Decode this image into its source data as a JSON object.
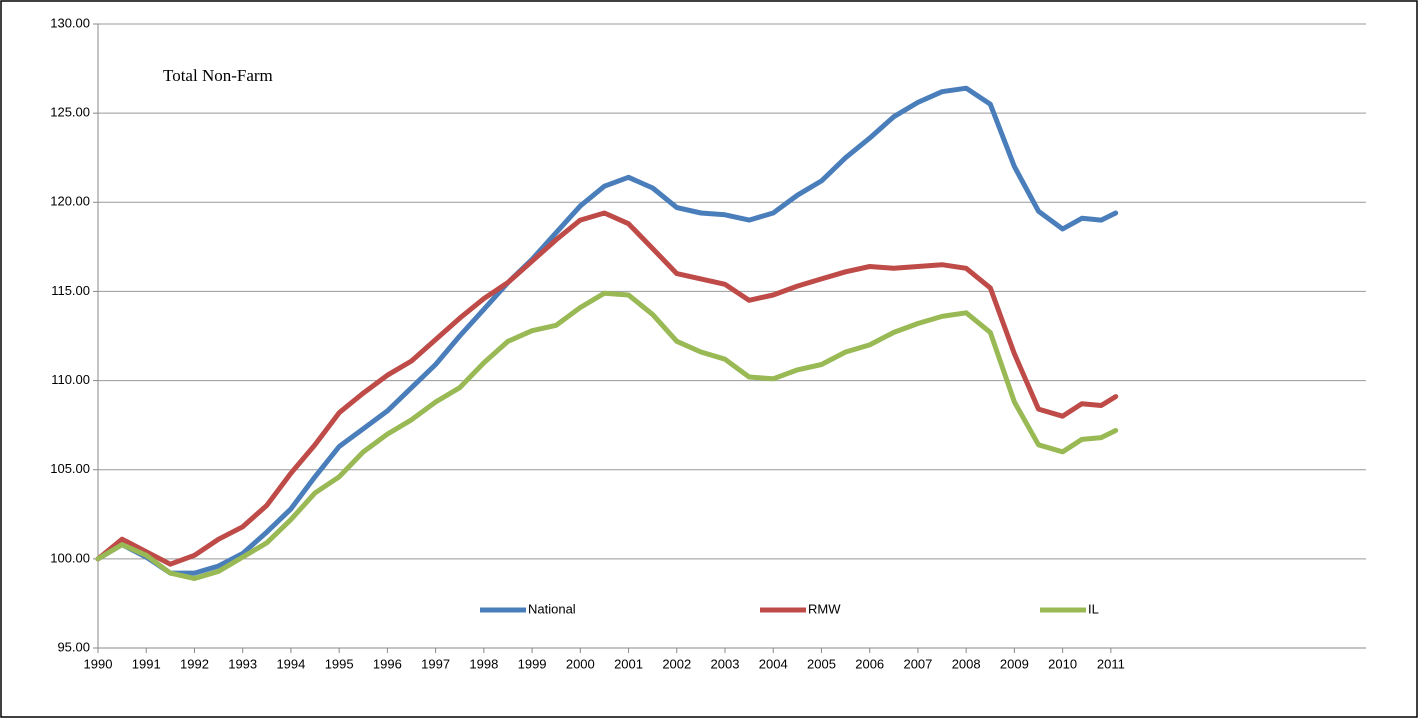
{
  "chart_data": {
    "type": "line",
    "title": "Total Non-Farm",
    "x": [
      1990,
      1990.5,
      1991,
      1991.5,
      1992,
      1992.5,
      1993,
      1993.5,
      1994,
      1994.5,
      1995,
      1995.5,
      1996,
      1996.5,
      1997,
      1997.5,
      1998,
      1998.5,
      1999,
      1999.5,
      2000,
      2000.5,
      2001,
      2001.5,
      2002,
      2002.5,
      2003,
      2003.5,
      2004,
      2004.5,
      2005,
      2005.5,
      2006,
      2006.5,
      2007,
      2007.5,
      2008,
      2008.5,
      2009,
      2009.5,
      2010,
      2010.4,
      2010.8,
      2011.1
    ],
    "series": [
      {
        "name": "National",
        "color": "#4a7ebb",
        "values": [
          100,
          100.8,
          100.1,
          99.2,
          99.2,
          99.6,
          100.3,
          101.5,
          102.8,
          104.6,
          106.3,
          107.3,
          108.3,
          109.6,
          110.9,
          112.5,
          114.0,
          115.5,
          116.8,
          118.3,
          119.8,
          120.9,
          121.4,
          120.8,
          119.7,
          119.4,
          119.3,
          119.0,
          119.4,
          120.4,
          121.2,
          122.5,
          123.6,
          124.8,
          125.6,
          126.2,
          126.4,
          125.5,
          122.0,
          119.5,
          118.5,
          119.1,
          119.0,
          119.4
        ]
      },
      {
        "name": "RMW",
        "color": "#be4b48",
        "values": [
          100,
          101.1,
          100.4,
          99.7,
          100.2,
          101.1,
          101.8,
          103.0,
          104.8,
          106.4,
          108.2,
          109.3,
          110.3,
          111.1,
          112.3,
          113.5,
          114.6,
          115.5,
          116.7,
          117.9,
          119.0,
          119.4,
          118.8,
          117.4,
          116.0,
          115.7,
          115.4,
          114.5,
          114.8,
          115.3,
          115.7,
          116.1,
          116.4,
          116.3,
          116.4,
          116.5,
          116.3,
          115.2,
          111.5,
          108.4,
          108.0,
          108.7,
          108.6,
          109.1
        ]
      },
      {
        "name": "IL",
        "color": "#98b954",
        "values": [
          100,
          100.8,
          100.2,
          99.2,
          98.9,
          99.3,
          100.1,
          100.9,
          102.2,
          103.7,
          104.6,
          106.0,
          107.0,
          107.8,
          108.8,
          109.6,
          111.0,
          112.2,
          112.8,
          113.1,
          114.1,
          114.9,
          114.8,
          113.7,
          112.2,
          111.6,
          111.2,
          110.2,
          110.1,
          110.6,
          110.9,
          111.6,
          112.0,
          112.7,
          113.2,
          113.6,
          113.8,
          112.7,
          108.8,
          106.4,
          106.0,
          106.7,
          106.8,
          107.2
        ]
      }
    ],
    "xlim": [
      1990,
      2016.29
    ],
    "xticks": [
      1990,
      1991,
      1992,
      1993,
      1994,
      1995,
      1996,
      1997,
      1998,
      1999,
      2000,
      2001,
      2002,
      2003,
      2004,
      2005,
      2006,
      2007,
      2008,
      2009,
      2010,
      2011
    ],
    "ylim": [
      95,
      130
    ],
    "yticks": [
      {
        "value": 95,
        "label": "95.00"
      },
      {
        "value": 100,
        "label": "100.00"
      },
      {
        "value": 105,
        "label": "105.00"
      },
      {
        "value": 110,
        "label": "110.00"
      },
      {
        "value": 115,
        "label": "115.00"
      },
      {
        "value": 120,
        "label": "120.00"
      },
      {
        "value": 125,
        "label": "125.00"
      },
      {
        "value": 130,
        "label": "130.00"
      }
    ],
    "grid": true
  }
}
